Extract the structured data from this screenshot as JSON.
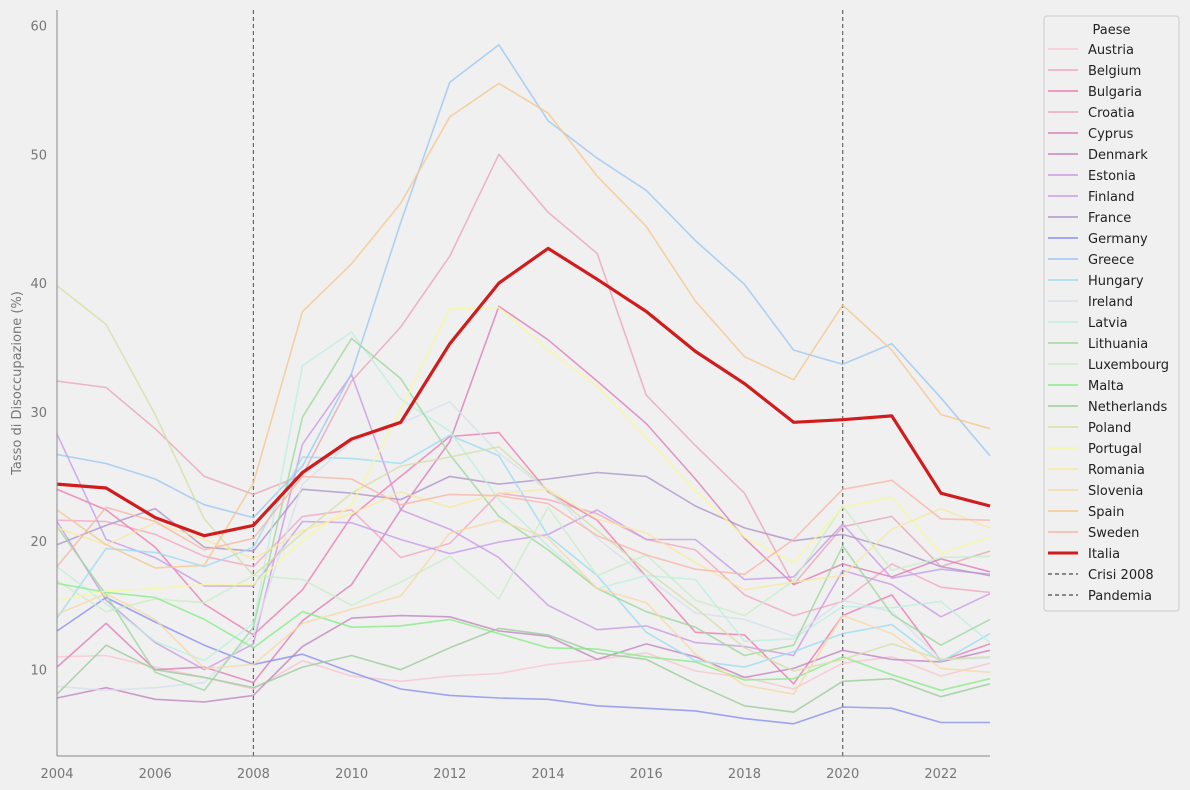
{
  "chart_data": {
    "type": "line",
    "xlabel": "",
    "ylabel": "Tasso di Disoccupazione (%)",
    "xlim": [
      2004,
      2023
    ],
    "ylim": [
      3.3,
      61.2
    ],
    "xticks": [
      "2004",
      "2006",
      "2008",
      "2010",
      "2012",
      "2014",
      "2016",
      "2018",
      "2020",
      "2022"
    ],
    "yticks": [
      "10",
      "20",
      "30",
      "40",
      "50",
      "60"
    ],
    "grid": false,
    "legend": {
      "title": "Paese",
      "position": "right-outside"
    },
    "x": [
      2004,
      2005,
      2006,
      2007,
      2008,
      2009,
      2010,
      2011,
      2012,
      2013,
      2014,
      2015,
      2016,
      2017,
      2018,
      2019,
      2020,
      2021,
      2022,
      2023
    ],
    "series": [
      {
        "name": "Austria",
        "color": "#f9c6d0",
        "values": [
          11.0,
          11.1,
          10.2,
          9.4,
          8.5,
          10.7,
          9.5,
          9.1,
          9.5,
          9.7,
          10.4,
          10.8,
          11.3,
          9.9,
          9.4,
          8.5,
          10.5,
          11.0,
          9.5,
          10.5
        ]
      },
      {
        "name": "Belgium",
        "color": "#f4a6c4",
        "values": [
          21.6,
          21.5,
          20.5,
          18.8,
          18.0,
          21.9,
          22.4,
          18.7,
          19.8,
          23.7,
          23.2,
          22.1,
          20.1,
          19.3,
          15.8,
          14.2,
          15.3,
          18.2,
          16.4,
          16.0
        ]
      },
      {
        "name": "Bulgaria",
        "color": "#ee7db2",
        "values": [
          24.0,
          22.4,
          19.5,
          15.1,
          12.7,
          16.2,
          21.9,
          25.0,
          28.1,
          28.4,
          23.8,
          21.6,
          17.2,
          12.9,
          12.7,
          8.9,
          14.2,
          15.8,
          10.7,
          12.0
        ]
      },
      {
        "name": "Croatia",
        "color": "#e8a8b9",
        "values": [
          32.4,
          31.9,
          28.7,
          25.0,
          23.6,
          25.1,
          32.4,
          36.6,
          42.1,
          50.0,
          45.5,
          42.3,
          31.3,
          27.4,
          23.7,
          16.6,
          21.1,
          21.9,
          18.0,
          19.2
        ]
      },
      {
        "name": "Cyprus",
        "color": "#dd7eb8",
        "values": [
          10.2,
          13.6,
          10.0,
          10.2,
          9.0,
          13.8,
          16.6,
          22.4,
          27.7,
          38.2,
          35.6,
          32.4,
          29.1,
          24.8,
          20.2,
          16.6,
          18.2,
          17.2,
          18.6,
          17.6
        ]
      },
      {
        "name": "Denmark",
        "color": "#c286c2",
        "values": [
          7.8,
          8.6,
          7.7,
          7.5,
          8.0,
          11.8,
          14.0,
          14.2,
          14.1,
          13.0,
          12.6,
          10.8,
          12.0,
          11.0,
          9.4,
          10.1,
          11.5,
          10.8,
          10.6,
          11.5
        ]
      },
      {
        "name": "Estonia",
        "color": "#cc9ae3",
        "values": [
          21.5,
          15.4,
          12.1,
          10.0,
          12.0,
          27.5,
          32.9,
          22.4,
          20.9,
          18.7,
          15.0,
          13.1,
          13.4,
          12.1,
          11.8,
          11.1,
          17.7,
          16.6,
          14.1,
          15.9
        ]
      },
      {
        "name": "Finland",
        "color": "#c79cea",
        "values": [
          28.3,
          20.1,
          18.7,
          16.5,
          16.5,
          21.5,
          21.4,
          20.1,
          19.0,
          19.9,
          20.5,
          22.4,
          20.1,
          20.1,
          17.0,
          17.2,
          21.3,
          17.1,
          17.8,
          17.4
        ]
      },
      {
        "name": "France",
        "color": "#b095c9",
        "values": [
          19.7,
          21.2,
          22.5,
          19.5,
          19.2,
          24.0,
          23.7,
          23.2,
          25.0,
          24.4,
          24.8,
          25.3,
          25.0,
          22.7,
          21.0,
          20.0,
          20.5,
          19.4,
          18.0,
          17.3
        ]
      },
      {
        "name": "Germany",
        "color": "#8a90ef",
        "values": [
          13.0,
          15.6,
          13.7,
          11.9,
          10.4,
          11.2,
          9.8,
          8.5,
          8.0,
          7.8,
          7.7,
          7.2,
          7.0,
          6.8,
          6.2,
          5.8,
          7.1,
          7.0,
          5.9,
          5.9
        ]
      },
      {
        "name": "Greece",
        "color": "#9cc8f2",
        "values": [
          26.7,
          26.0,
          24.8,
          22.8,
          21.8,
          25.8,
          33.0,
          44.7,
          55.6,
          58.5,
          52.6,
          49.7,
          47.2,
          43.3,
          39.9,
          34.8,
          33.7,
          35.3,
          31.1,
          26.6
        ]
      },
      {
        "name": "Hungary",
        "color": "#9cdcf2",
        "values": [
          14.0,
          19.4,
          19.1,
          18.0,
          19.5,
          26.5,
          26.4,
          26.0,
          28.2,
          26.6,
          20.4,
          17.3,
          12.9,
          10.7,
          10.2,
          11.4,
          12.8,
          13.5,
          10.6,
          12.8
        ]
      },
      {
        "name": "Ireland",
        "color": "#d6e1ec",
        "values": [
          8.7,
          8.4,
          8.6,
          9.0,
          12.7,
          24.4,
          27.7,
          29.1,
          30.8,
          26.8,
          23.9,
          20.2,
          17.2,
          14.4,
          13.9,
          12.6,
          15.4,
          14.5,
          10.8,
          10.9
        ]
      },
      {
        "name": "Latvia",
        "color": "#bdf0de",
        "values": [
          18.0,
          15.1,
          12.2,
          10.7,
          13.6,
          33.6,
          36.2,
          31.0,
          28.5,
          23.2,
          19.6,
          16.3,
          17.3,
          17.0,
          12.2,
          12.4,
          14.9,
          14.8,
          15.3,
          12.1
        ]
      },
      {
        "name": "Lithuania",
        "color": "#9ed89e",
        "values": [
          21.1,
          15.8,
          9.8,
          8.4,
          13.3,
          29.6,
          35.7,
          32.6,
          26.7,
          21.9,
          19.3,
          16.3,
          14.5,
          13.3,
          11.1,
          11.9,
          19.6,
          14.3,
          11.9,
          13.9
        ]
      },
      {
        "name": "Luxembourg",
        "color": "#c9eec7",
        "values": [
          16.9,
          14.5,
          15.5,
          15.2,
          17.3,
          17.0,
          15.0,
          16.8,
          18.8,
          15.5,
          22.6,
          17.3,
          18.9,
          15.4,
          14.2,
          16.9,
          22.7,
          17.7,
          18.7,
          18.8
        ]
      },
      {
        "name": "Malta",
        "color": "#88ec88",
        "values": [
          16.7,
          16.0,
          15.6,
          13.9,
          11.7,
          14.5,
          13.3,
          13.4,
          13.9,
          12.8,
          11.7,
          11.6,
          11.0,
          10.6,
          9.2,
          9.3,
          11.0,
          9.6,
          8.4,
          9.3
        ]
      },
      {
        "name": "Netherlands",
        "color": "#9ccc9c",
        "values": [
          8.1,
          11.9,
          10.0,
          9.4,
          8.6,
          10.2,
          11.1,
          10.0,
          11.7,
          13.2,
          12.7,
          11.3,
          10.8,
          8.9,
          7.2,
          6.7,
          9.1,
          9.3,
          7.9,
          8.9
        ]
      },
      {
        "name": "Poland",
        "color": "#d4e0a6",
        "values": [
          39.8,
          36.8,
          29.8,
          21.7,
          17.3,
          20.6,
          23.7,
          25.8,
          26.5,
          27.3,
          23.9,
          20.8,
          17.7,
          14.8,
          11.7,
          9.9,
          10.8,
          12.0,
          10.8,
          11.0
        ]
      },
      {
        "name": "Portugal",
        "color": "#f7f79c",
        "values": [
          15.4,
          16.1,
          16.3,
          16.6,
          16.6,
          20.0,
          22.8,
          30.2,
          38.0,
          38.1,
          34.8,
          32.0,
          28.0,
          23.9,
          20.3,
          18.3,
          22.6,
          23.4,
          19.0,
          20.3
        ]
      },
      {
        "name": "Romania",
        "color": "#f9e9a0",
        "values": [
          21.0,
          19.7,
          21.4,
          20.1,
          18.6,
          20.8,
          22.1,
          23.8,
          22.6,
          23.7,
          24.0,
          21.7,
          20.6,
          18.3,
          16.2,
          16.8,
          17.3,
          20.9,
          22.5,
          21.0
        ]
      },
      {
        "name": "Slovenia",
        "color": "#f7d8a6",
        "values": [
          14.3,
          15.9,
          13.9,
          10.1,
          10.4,
          13.6,
          14.7,
          15.7,
          20.6,
          21.6,
          20.2,
          16.3,
          15.2,
          11.2,
          8.8,
          8.1,
          14.2,
          12.8,
          10.1,
          9.8
        ]
      },
      {
        "name": "Spain",
        "color": "#f5c88e",
        "values": [
          22.4,
          19.7,
          17.9,
          18.1,
          24.5,
          37.8,
          41.5,
          46.2,
          52.9,
          55.5,
          53.2,
          48.3,
          44.4,
          38.6,
          34.3,
          32.5,
          38.3,
          34.8,
          29.8,
          28.7
        ]
      },
      {
        "name": "Sweden",
        "color": "#f7b6a8",
        "values": [
          18.0,
          22.6,
          21.5,
          19.3,
          20.2,
          25.0,
          24.8,
          22.8,
          23.6,
          23.5,
          22.9,
          20.4,
          18.9,
          17.8,
          17.4,
          20.1,
          24.0,
          24.7,
          21.7,
          21.6
        ]
      },
      {
        "name": "Italia",
        "color": "#d01c1c",
        "values": [
          24.4,
          24.1,
          21.8,
          20.4,
          21.2,
          25.3,
          27.9,
          29.2,
          35.3,
          40.0,
          42.7,
          40.3,
          37.8,
          34.7,
          32.2,
          29.2,
          29.4,
          29.7,
          23.7,
          22.7
        ]
      }
    ],
    "vlines": [
      {
        "name": "Crisi 2008",
        "x": 2008,
        "color": "#666666",
        "style": "dashed"
      },
      {
        "name": "Pandemia",
        "x": 2020,
        "color": "#666666",
        "style": "dashed"
      }
    ]
  }
}
